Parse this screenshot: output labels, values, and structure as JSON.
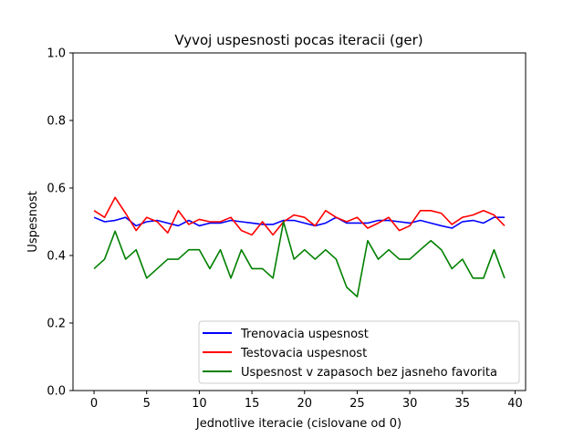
{
  "chart_data": {
    "type": "line",
    "title": "Vyvoj uspesnosti pocas iteracii (ger)",
    "xlabel": "Jednotlive iteracie (cislovane od 0)",
    "ylabel": "Uspesnost",
    "xlim": [
      -2,
      41
    ],
    "ylim": [
      0.0,
      1.0
    ],
    "x_ticks": [
      0,
      5,
      10,
      15,
      20,
      25,
      30,
      35,
      40
    ],
    "y_ticks": [
      0.0,
      0.2,
      0.4,
      0.6,
      0.8,
      1.0
    ],
    "y_tick_labels": [
      "0.0",
      "0.2",
      "0.4",
      "0.6",
      "0.8",
      "1.0"
    ],
    "grid": false,
    "legend_position": "lower-right",
    "x": [
      0,
      1,
      2,
      3,
      4,
      5,
      6,
      7,
      8,
      9,
      10,
      11,
      12,
      13,
      14,
      15,
      16,
      17,
      18,
      19,
      20,
      21,
      22,
      23,
      24,
      25,
      26,
      27,
      28,
      29,
      30,
      31,
      32,
      33,
      34,
      35,
      36,
      37,
      38,
      39
    ],
    "series": [
      {
        "name": "Trenovacia uspesnost",
        "color": "#0000ff",
        "values": [
          0.513,
          0.5,
          0.504,
          0.513,
          0.488,
          0.5,
          0.504,
          0.496,
          0.488,
          0.504,
          0.488,
          0.496,
          0.496,
          0.504,
          0.5,
          0.496,
          0.492,
          0.492,
          0.504,
          0.504,
          0.496,
          0.488,
          0.496,
          0.513,
          0.496,
          0.496,
          0.496,
          0.504,
          0.504,
          0.5,
          0.496,
          0.504,
          0.496,
          0.488,
          0.481,
          0.5,
          0.504,
          0.496,
          0.513,
          0.513
        ]
      },
      {
        "name": "Testovacia uspesnost",
        "color": "#ff0000",
        "values": [
          0.533,
          0.513,
          0.572,
          0.525,
          0.474,
          0.513,
          0.5,
          0.467,
          0.533,
          0.492,
          0.507,
          0.5,
          0.5,
          0.513,
          0.474,
          0.461,
          0.5,
          0.461,
          0.5,
          0.52,
          0.513,
          0.488,
          0.533,
          0.513,
          0.5,
          0.513,
          0.481,
          0.496,
          0.513,
          0.474,
          0.488,
          0.533,
          0.533,
          0.525,
          0.492,
          0.513,
          0.52,
          0.533,
          0.52,
          0.488
        ]
      },
      {
        "name": "Uspesnost v zapasoch bez jasneho favorita",
        "color": "#008000",
        "values": [
          0.361,
          0.389,
          0.472,
          0.389,
          0.417,
          0.333,
          0.361,
          0.389,
          0.389,
          0.417,
          0.417,
          0.361,
          0.417,
          0.333,
          0.417,
          0.361,
          0.361,
          0.333,
          0.5,
          0.389,
          0.417,
          0.389,
          0.417,
          0.389,
          0.306,
          0.278,
          0.444,
          0.389,
          0.417,
          0.389,
          0.389,
          0.417,
          0.444,
          0.417,
          0.361,
          0.389,
          0.333,
          0.333,
          0.417,
          0.333
        ]
      }
    ]
  }
}
